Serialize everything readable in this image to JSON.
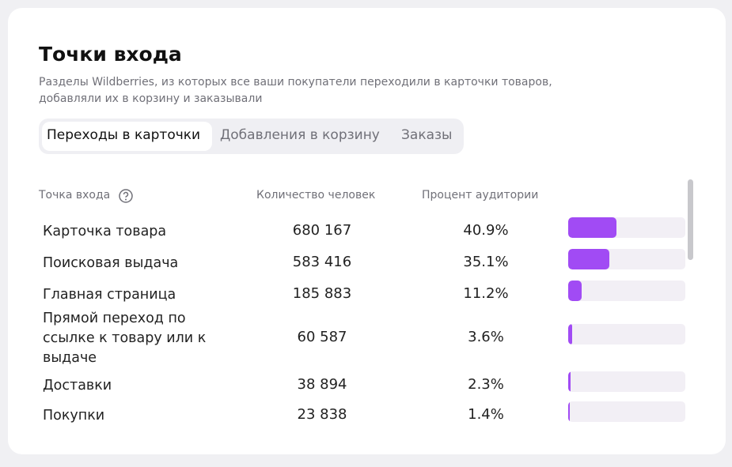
{
  "header": {
    "title": "Точки входа",
    "subtitle_lines": [
      "Разделы Wildberries, из которых все ваши покупатели переходили в карточки товаров,",
      "добавляли их в корзину и заказывали"
    ]
  },
  "tabs": [
    "Переходы в карточки",
    "Добавления в корзину",
    "Заказы"
  ],
  "table": {
    "columns": [
      "Точка входа",
      "Количество человек",
      "Процент аудитории"
    ],
    "bar_scale": [
      0,
      100
    ],
    "rows": [
      {
        "name": "Карточка товара",
        "count": "680 167",
        "share": {
          "value": 40.9,
          "label": "40.9%"
        }
      },
      {
        "name": "Поисковая выдача",
        "count": "583 416",
        "share": {
          "value": 35.1,
          "label": "35.1%"
        }
      },
      {
        "name": "Главная страница",
        "count": "185 883",
        "share": {
          "value": 11.2,
          "label": "11.2%"
        }
      },
      {
        "name": "Прямой переход по ссылке к товару или к выдаче",
        "count": "60 587",
        "share": {
          "value": 3.6,
          "label": "3.6%"
        }
      },
      {
        "name": "Доставки",
        "count": "38 894",
        "share": {
          "value": 2.3,
          "label": "2.3%"
        }
      },
      {
        "name": "Покупки",
        "count": "23 838",
        "share": {
          "value": 1.4,
          "label": "1.4%"
        }
      }
    ]
  }
}
